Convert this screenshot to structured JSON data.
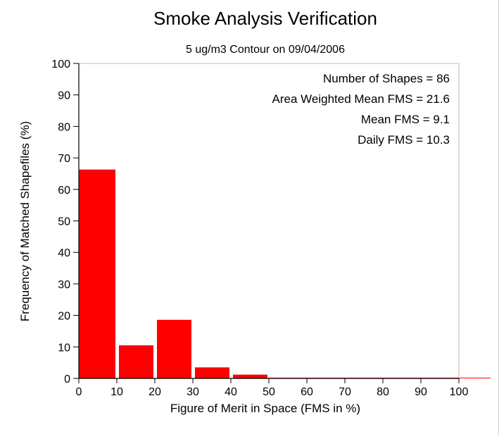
{
  "chart_data": {
    "type": "bar",
    "title": "Smoke Analysis Verification",
    "subtitle": "5 ug/m3 Contour on 09/04/2006",
    "xlabel": "Figure of Merit in Space (FMS in %)",
    "ylabel": "Frequency of Matched Shapefiles (%)",
    "xlim": [
      0,
      100
    ],
    "ylim": [
      0,
      100
    ],
    "xticks": [
      0,
      10,
      20,
      30,
      40,
      50,
      60,
      70,
      80,
      90,
      100
    ],
    "yticks": [
      0,
      10,
      20,
      30,
      40,
      50,
      60,
      70,
      80,
      90,
      100
    ],
    "bin_width": 10,
    "bins": [
      {
        "start": 0,
        "end": 10,
        "value": 66.3
      },
      {
        "start": 10,
        "end": 20,
        "value": 10.5
      },
      {
        "start": 20,
        "end": 30,
        "value": 18.6
      },
      {
        "start": 30,
        "end": 40,
        "value": 3.5
      },
      {
        "start": 40,
        "end": 50,
        "value": 1.2
      },
      {
        "start": 50,
        "end": 60,
        "value": 0
      },
      {
        "start": 60,
        "end": 70,
        "value": 0
      },
      {
        "start": 70,
        "end": 80,
        "value": 0
      },
      {
        "start": 80,
        "end": 90,
        "value": 0
      },
      {
        "start": 90,
        "end": 100,
        "value": 0
      }
    ],
    "bar_color": "#ff0000",
    "grid": false,
    "annotations": [
      "Number of Shapes = 86",
      "Area Weighted Mean FMS = 21.6",
      "Mean FMS = 9.1",
      "Daily FMS = 10.3"
    ]
  }
}
